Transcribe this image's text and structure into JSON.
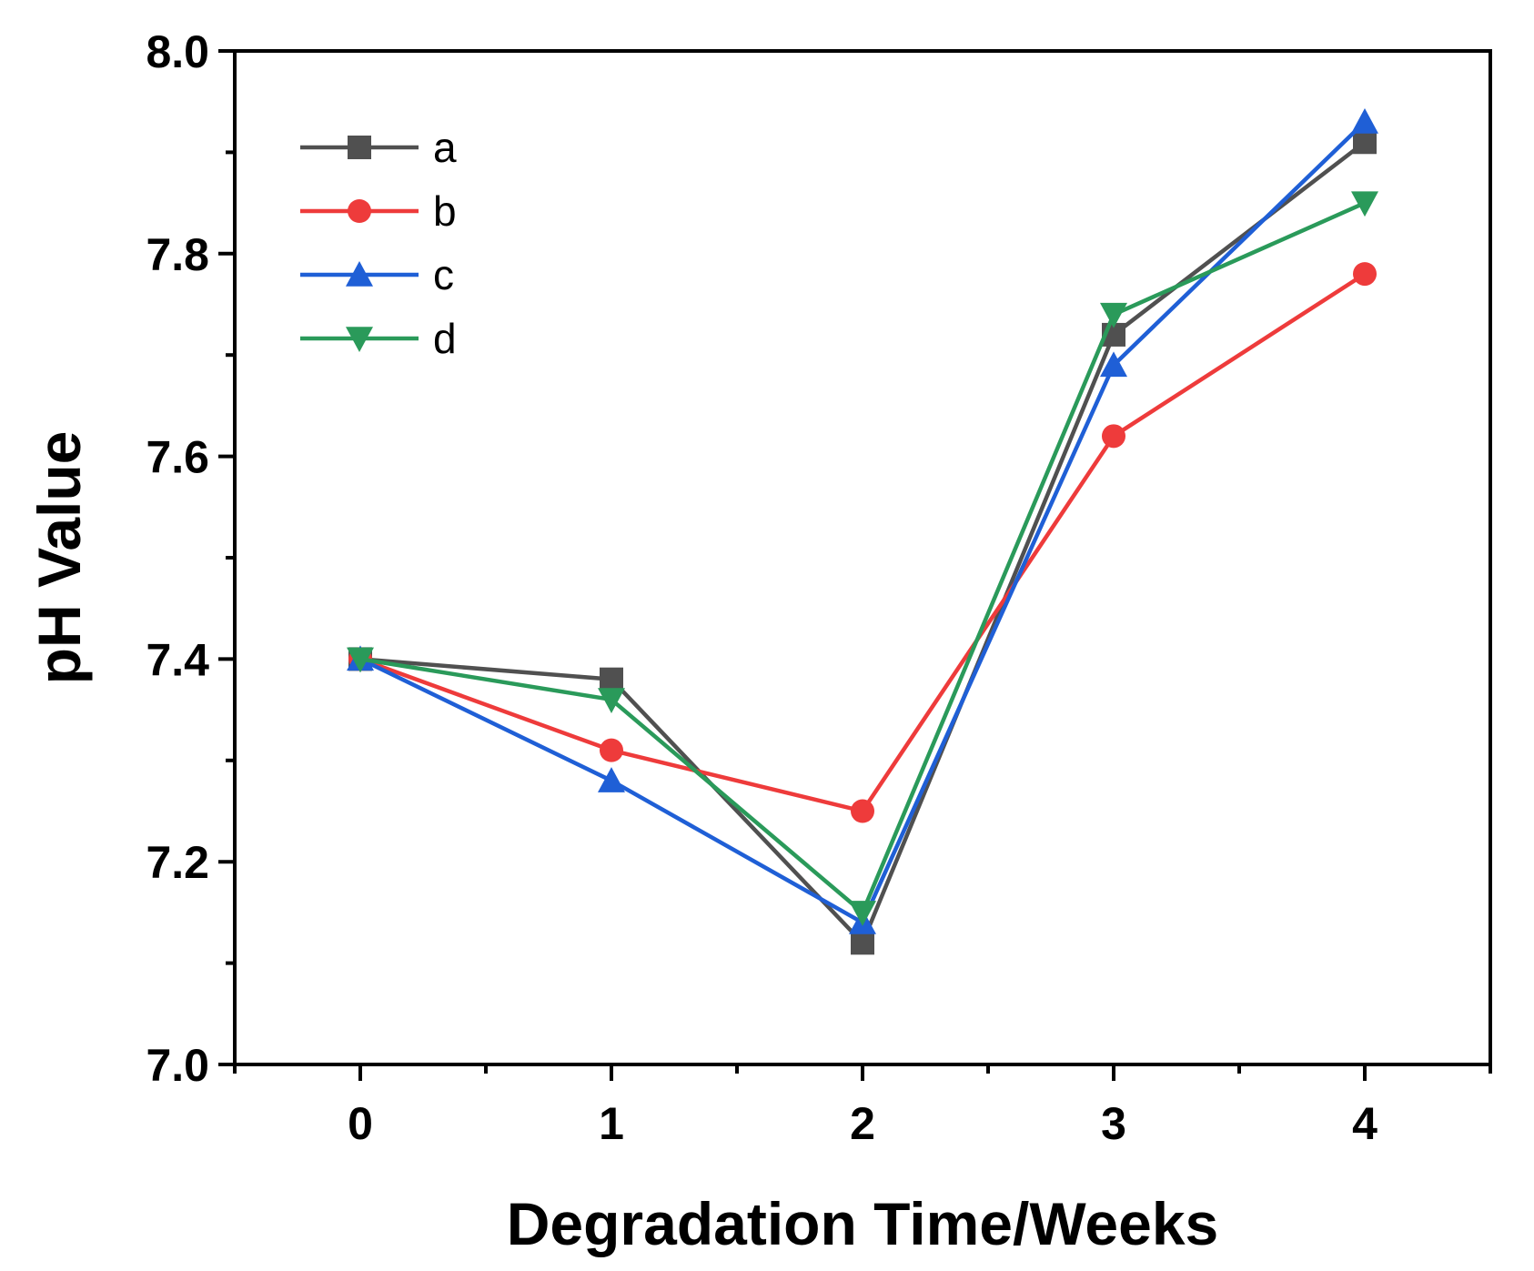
{
  "chart_data": {
    "type": "line",
    "title": "",
    "xlabel": "Degradation Time/Weeks",
    "ylabel": "pH Value",
    "x": [
      0,
      1,
      2,
      3,
      4
    ],
    "x_ticks": [
      "0",
      "1",
      "2",
      "3",
      "4"
    ],
    "y_ticks": [
      "7.0",
      "7.2",
      "7.4",
      "7.6",
      "7.8",
      "8.0"
    ],
    "xlim": [
      -0.5,
      4.5
    ],
    "ylim": [
      7.0,
      8.0
    ],
    "grid": false,
    "legend_position": "top-left",
    "series": [
      {
        "name": "a",
        "color": "#505050",
        "marker": "square",
        "values": [
          7.4,
          7.38,
          7.12,
          7.72,
          7.91
        ]
      },
      {
        "name": "b",
        "color": "#ee3b3b",
        "marker": "circle",
        "values": [
          7.4,
          7.31,
          7.25,
          7.62,
          7.78
        ]
      },
      {
        "name": "c",
        "color": "#1f5fd6",
        "marker": "triangle-up",
        "values": [
          7.4,
          7.28,
          7.14,
          7.69,
          7.93
        ]
      },
      {
        "name": "d",
        "color": "#2a9a5a",
        "marker": "triangle-down",
        "values": [
          7.4,
          7.36,
          7.15,
          7.74,
          7.85
        ]
      }
    ]
  }
}
